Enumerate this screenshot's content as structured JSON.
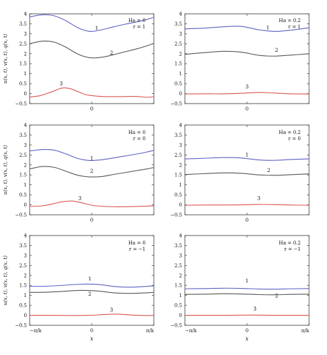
{
  "figure": {
    "ylabel": "u(x, t), v(x, t), q(x, t)",
    "xlabel": "x",
    "x_ticks": [
      "−π/k",
      "0",
      "π/k"
    ]
  },
  "chart_data": [
    {
      "type": "line",
      "panel": "row1-left",
      "annotation": [
        "Ha = 0",
        "r = 1"
      ],
      "xlim": [
        -3.1416,
        3.1416
      ],
      "ylim": [
        -0.5,
        4
      ],
      "yticks": [
        "−0.5",
        "0",
        "0.5",
        "1",
        "1.5",
        "2",
        "2.5",
        "3",
        "3.5",
        "4"
      ],
      "xticks": [
        "0"
      ],
      "series": [
        {
          "curve_label": "1",
          "color": "#5b5fc0",
          "label_x": 0.25,
          "label_y": 3.2,
          "x": [
            -3.14,
            -2.5,
            -1.9,
            -1.3,
            -0.7,
            -0.1,
            0.5,
            1.1,
            1.7,
            2.3,
            2.8,
            3.14
          ],
          "y": [
            3.85,
            3.95,
            3.9,
            3.65,
            3.3,
            3.12,
            3.2,
            3.35,
            3.48,
            3.6,
            3.72,
            3.83
          ]
        },
        {
          "curve_label": "2",
          "color": "#555555",
          "label_x": 1.0,
          "label_y": 1.95,
          "x": [
            -3.14,
            -2.5,
            -1.9,
            -1.3,
            -0.7,
            -0.1,
            0.5,
            1.1,
            1.7,
            2.3,
            2.8,
            3.14
          ],
          "y": [
            2.5,
            2.63,
            2.58,
            2.32,
            1.98,
            1.8,
            1.82,
            1.95,
            2.1,
            2.25,
            2.4,
            2.52
          ]
        },
        {
          "curve_label": "3",
          "color": "#d9534f",
          "label_x": -1.55,
          "label_y": 0.42,
          "x": [
            -3.14,
            -2.6,
            -2.0,
            -1.5,
            -1.1,
            -0.7,
            -0.3,
            0.2,
            0.8,
            1.5,
            2.2,
            2.8,
            3.14
          ],
          "y": [
            -0.17,
            -0.1,
            0.1,
            0.28,
            0.25,
            0.1,
            -0.05,
            -0.12,
            -0.15,
            -0.15,
            -0.14,
            -0.18,
            -0.15
          ]
        }
      ]
    },
    {
      "type": "line",
      "panel": "row1-right",
      "annotation": [
        "Ha = 0.2",
        "r = 1"
      ],
      "xlim": [
        -3.1416,
        3.1416
      ],
      "ylim": [
        -0.5,
        4
      ],
      "yticks": [
        "−0.5",
        "0",
        "0.5",
        "1",
        "1.5",
        "2",
        "2.5",
        "3",
        "3.5",
        "4"
      ],
      "xticks": [
        "0"
      ],
      "series": [
        {
          "curve_label": "1",
          "color": "#5b5fc0",
          "label_x": 1.05,
          "label_y": 3.22,
          "x": [
            -3.14,
            -2.2,
            -1.2,
            -0.3,
            0.6,
            1.4,
            2.2,
            3.14
          ],
          "y": [
            3.25,
            3.28,
            3.35,
            3.37,
            3.2,
            3.12,
            3.18,
            3.3
          ]
        },
        {
          "curve_label": "2",
          "color": "#555555",
          "label_x": 1.5,
          "label_y": 2.1,
          "x": [
            -3.14,
            -2.2,
            -1.2,
            -0.3,
            0.6,
            1.4,
            2.2,
            3.14
          ],
          "y": [
            1.97,
            2.05,
            2.12,
            2.08,
            1.92,
            1.88,
            1.93,
            2.0
          ]
        },
        {
          "curve_label": "3",
          "color": "#d9534f",
          "label_x": 0.0,
          "label_y": 0.27,
          "x": [
            -3.14,
            -2.0,
            -1.0,
            -0.2,
            0.6,
            1.4,
            2.2,
            3.14
          ],
          "y": [
            -0.02,
            -0.01,
            -0.01,
            0.02,
            0.06,
            0.03,
            -0.01,
            -0.02
          ]
        }
      ]
    },
    {
      "type": "line",
      "panel": "row2-left",
      "annotation": [
        "Ha = 0",
        "r = 0"
      ],
      "xlim": [
        -3.1416,
        3.1416
      ],
      "ylim": [
        -0.5,
        4
      ],
      "yticks": [
        "−0.5",
        "0",
        "0.5",
        "1",
        "1.5",
        "2",
        "2.5",
        "3",
        "3.5",
        "4"
      ],
      "xticks": [
        "0"
      ],
      "series": [
        {
          "curve_label": "1",
          "color": "#5b5fc0",
          "label_x": 0.0,
          "label_y": 2.25,
          "x": [
            -3.14,
            -2.5,
            -1.9,
            -1.3,
            -0.7,
            -0.1,
            0.5,
            1.1,
            1.7,
            2.3,
            2.8,
            3.14
          ],
          "y": [
            2.7,
            2.77,
            2.74,
            2.55,
            2.32,
            2.22,
            2.26,
            2.35,
            2.45,
            2.55,
            2.65,
            2.73
          ]
        },
        {
          "curve_label": "2",
          "color": "#555555",
          "label_x": 0.0,
          "label_y": 1.62,
          "x": [
            -3.14,
            -2.5,
            -1.9,
            -1.3,
            -0.7,
            -0.1,
            0.5,
            1.1,
            1.7,
            2.3,
            2.8,
            3.14
          ],
          "y": [
            1.8,
            1.92,
            1.88,
            1.68,
            1.48,
            1.4,
            1.42,
            1.52,
            1.62,
            1.72,
            1.8,
            1.87
          ]
        },
        {
          "curve_label": "3",
          "color": "#d9534f",
          "label_x": -0.6,
          "label_y": 0.25,
          "x": [
            -3.14,
            -2.5,
            -2.0,
            -1.5,
            -1.0,
            -0.5,
            0.0,
            0.6,
            1.3,
            2.0,
            2.7,
            3.14
          ],
          "y": [
            -0.08,
            -0.05,
            0.04,
            0.15,
            0.19,
            0.1,
            -0.02,
            -0.08,
            -0.1,
            -0.09,
            -0.07,
            -0.05
          ]
        }
      ]
    },
    {
      "type": "line",
      "panel": "row2-right",
      "annotation": [
        "Ha = 0.2",
        "r = 0"
      ],
      "xlim": [
        -3.1416,
        3.1416
      ],
      "ylim": [
        -0.5,
        4
      ],
      "yticks": [
        "−0.5",
        "0",
        "0.5",
        "1",
        "1.5",
        "2",
        "2.5",
        "3",
        "3.5",
        "4"
      ],
      "xticks": [
        "0"
      ],
      "series": [
        {
          "curve_label": "1",
          "color": "#5b5fc0",
          "label_x": 0.0,
          "label_y": 2.42,
          "x": [
            -3.14,
            -2.2,
            -1.2,
            -0.3,
            0.6,
            1.4,
            2.2,
            3.14
          ],
          "y": [
            2.3,
            2.33,
            2.37,
            2.35,
            2.25,
            2.23,
            2.27,
            2.3
          ]
        },
        {
          "curve_label": "2",
          "color": "#555555",
          "label_x": 1.1,
          "label_y": 1.65,
          "x": [
            -3.14,
            -2.2,
            -1.2,
            -0.3,
            0.6,
            1.4,
            2.2,
            3.14
          ],
          "y": [
            1.52,
            1.56,
            1.6,
            1.58,
            1.5,
            1.48,
            1.51,
            1.55
          ]
        },
        {
          "curve_label": "3",
          "color": "#d9534f",
          "label_x": 0.6,
          "label_y": 0.25,
          "x": [
            -3.14,
            -2.0,
            -1.0,
            -0.2,
            0.6,
            1.4,
            2.2,
            3.14
          ],
          "y": [
            -0.02,
            -0.01,
            -0.01,
            0.0,
            0.02,
            0.01,
            -0.01,
            -0.02
          ]
        }
      ]
    },
    {
      "type": "line",
      "panel": "row3-left",
      "annotation": [
        "Ha = 0",
        "r = −1"
      ],
      "xlim": [
        -3.1416,
        3.1416
      ],
      "ylim": [
        -0.5,
        4
      ],
      "yticks": [
        "−0.5",
        "0",
        "0.5",
        "1",
        "1.5",
        "2",
        "2.5",
        "3",
        "3.5",
        "4"
      ],
      "xticks": [
        "−π/k",
        "0",
        "π/k"
      ],
      "series": [
        {
          "curve_label": "1",
          "color": "#5b5fc0",
          "label_x": -0.1,
          "label_y": 1.75,
          "x": [
            -3.14,
            -2.3,
            -1.5,
            -0.6,
            0.3,
            1.1,
            1.9,
            2.6,
            3.14
          ],
          "y": [
            1.45,
            1.46,
            1.5,
            1.56,
            1.55,
            1.45,
            1.41,
            1.44,
            1.48
          ]
        },
        {
          "curve_label": "2",
          "color": "#555555",
          "label_x": -0.1,
          "label_y": 0.98,
          "x": [
            -3.14,
            -2.3,
            -1.5,
            -0.6,
            0.3,
            1.1,
            1.9,
            2.6,
            3.14
          ],
          "y": [
            1.15,
            1.16,
            1.2,
            1.25,
            1.22,
            1.13,
            1.1,
            1.12,
            1.15
          ]
        },
        {
          "curve_label": "3",
          "color": "#d9534f",
          "label_x": 1.0,
          "label_y": 0.2,
          "x": [
            -3.14,
            -2.0,
            -1.0,
            -0.2,
            0.5,
            1.2,
            1.9,
            2.6,
            3.14
          ],
          "y": [
            0.0,
            0.0,
            -0.01,
            0.0,
            0.03,
            0.06,
            0.02,
            -0.01,
            0.0
          ]
        }
      ]
    },
    {
      "type": "line",
      "panel": "row3-right",
      "annotation": [
        "Ha = 0.2",
        "r = −1"
      ],
      "xlim": [
        -3.1416,
        3.1416
      ],
      "ylim": [
        -0.5,
        4
      ],
      "yticks": [
        "−0.5",
        "0",
        "0.5",
        "1",
        "1.5",
        "2",
        "2.5",
        "3",
        "3.5",
        "4"
      ],
      "xticks": [
        "−π/k",
        "0",
        "π/k"
      ],
      "series": [
        {
          "curve_label": "1",
          "color": "#5b5fc0",
          "label_x": 0.0,
          "label_y": 1.65,
          "x": [
            -3.14,
            -2.2,
            -1.2,
            -0.3,
            0.6,
            1.4,
            2.2,
            3.14
          ],
          "y": [
            1.33,
            1.34,
            1.36,
            1.35,
            1.32,
            1.31,
            1.33,
            1.34
          ]
        },
        {
          "curve_label": "2",
          "color": "#555555",
          "label_x": 1.5,
          "label_y": 0.9,
          "x": [
            -3.14,
            -2.2,
            -1.2,
            -0.3,
            0.6,
            1.4,
            2.2,
            3.14
          ],
          "y": [
            1.05,
            1.06,
            1.08,
            1.07,
            1.04,
            1.03,
            1.05,
            1.06
          ]
        },
        {
          "curve_label": "3",
          "color": "#d9534f",
          "label_x": 0.4,
          "label_y": 0.25,
          "x": [
            -3.14,
            -2.0,
            -1.0,
            -0.2,
            0.6,
            1.4,
            2.2,
            3.14
          ],
          "y": [
            0.0,
            0.0,
            0.0,
            0.01,
            0.01,
            0.0,
            0.0,
            0.0
          ]
        }
      ]
    }
  ]
}
